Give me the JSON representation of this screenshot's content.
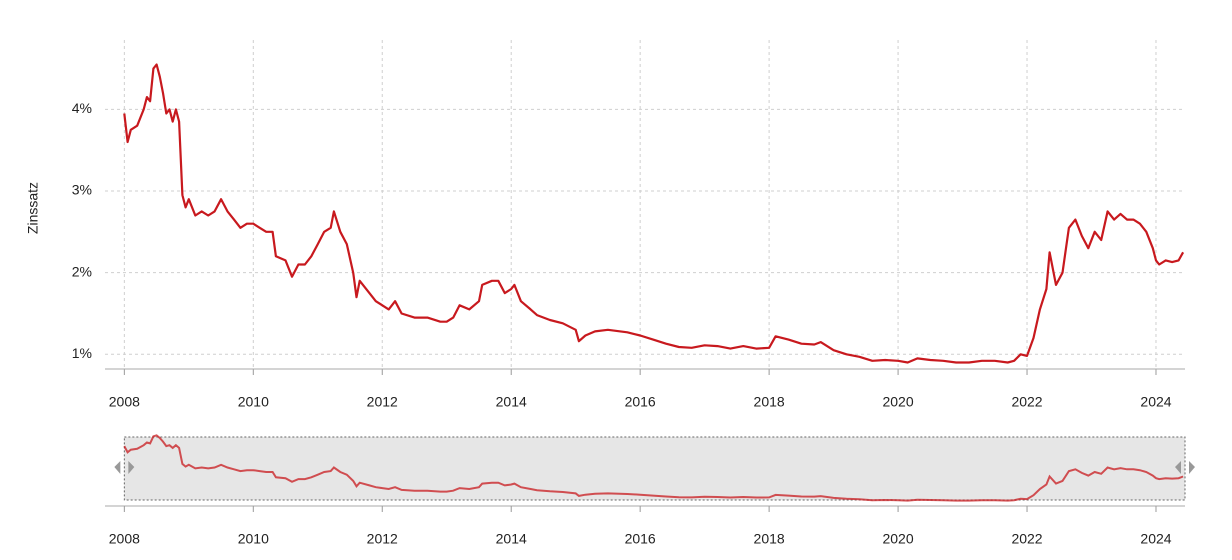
{
  "chart_data": {
    "type": "line",
    "y_label": "Zinssatz",
    "x": [
      2008.0,
      2008.05,
      2008.1,
      2008.2,
      2008.3,
      2008.35,
      2008.4,
      2008.45,
      2008.5,
      2008.55,
      2008.6,
      2008.65,
      2008.7,
      2008.75,
      2008.8,
      2008.85,
      2008.9,
      2008.95,
      2009.0,
      2009.1,
      2009.2,
      2009.3,
      2009.4,
      2009.5,
      2009.6,
      2009.7,
      2009.8,
      2009.9,
      2010.0,
      2010.1,
      2010.2,
      2010.3,
      2010.35,
      2010.5,
      2010.6,
      2010.7,
      2010.8,
      2010.9,
      2011.0,
      2011.1,
      2011.2,
      2011.25,
      2011.35,
      2011.45,
      2011.55,
      2011.6,
      2011.65,
      2011.8,
      2011.9,
      2012.0,
      2012.1,
      2012.2,
      2012.3,
      2012.5,
      2012.7,
      2012.9,
      2013.0,
      2013.1,
      2013.2,
      2013.35,
      2013.5,
      2013.55,
      2013.7,
      2013.8,
      2013.9,
      2014.0,
      2014.05,
      2014.15,
      2014.3,
      2014.4,
      2014.6,
      2014.8,
      2015.0,
      2015.05,
      2015.15,
      2015.3,
      2015.5,
      2015.8,
      2016.0,
      2016.2,
      2016.4,
      2016.6,
      2016.8,
      2017.0,
      2017.2,
      2017.4,
      2017.6,
      2017.8,
      2018.0,
      2018.1,
      2018.3,
      2018.5,
      2018.7,
      2018.8,
      2019.0,
      2019.2,
      2019.4,
      2019.6,
      2019.8,
      2020.0,
      2020.15,
      2020.3,
      2020.5,
      2020.7,
      2020.9,
      2021.1,
      2021.3,
      2021.5,
      2021.7,
      2021.8,
      2021.9,
      2022.0,
      2022.1,
      2022.2,
      2022.3,
      2022.35,
      2022.45,
      2022.55,
      2022.65,
      2022.75,
      2022.85,
      2022.95,
      2023.05,
      2023.15,
      2023.25,
      2023.35,
      2023.45,
      2023.55,
      2023.65,
      2023.75,
      2023.85,
      2023.95,
      2024.0,
      2024.05,
      2024.15,
      2024.25,
      2024.35,
      2024.42
    ],
    "series": [
      {
        "color": "#c8191e",
        "values": [
          3.95,
          3.6,
          3.75,
          3.8,
          4.0,
          4.15,
          4.1,
          4.5,
          4.55,
          4.4,
          4.2,
          3.95,
          4.0,
          3.85,
          4.0,
          3.85,
          2.95,
          2.8,
          2.9,
          2.7,
          2.75,
          2.7,
          2.75,
          2.9,
          2.75,
          2.65,
          2.55,
          2.6,
          2.6,
          2.55,
          2.5,
          2.5,
          2.2,
          2.15,
          1.95,
          2.1,
          2.1,
          2.2,
          2.35,
          2.5,
          2.55,
          2.75,
          2.5,
          2.35,
          2.0,
          1.7,
          1.9,
          1.75,
          1.65,
          1.6,
          1.55,
          1.65,
          1.5,
          1.45,
          1.45,
          1.4,
          1.4,
          1.45,
          1.6,
          1.55,
          1.65,
          1.85,
          1.9,
          1.9,
          1.75,
          1.8,
          1.85,
          1.65,
          1.55,
          1.48,
          1.42,
          1.38,
          1.3,
          1.16,
          1.23,
          1.28,
          1.3,
          1.27,
          1.23,
          1.18,
          1.13,
          1.09,
          1.08,
          1.11,
          1.1,
          1.07,
          1.1,
          1.07,
          1.08,
          1.22,
          1.18,
          1.13,
          1.12,
          1.15,
          1.05,
          1.0,
          0.97,
          0.92,
          0.93,
          0.92,
          0.9,
          0.95,
          0.93,
          0.92,
          0.9,
          0.9,
          0.92,
          0.92,
          0.9,
          0.92,
          1.0,
          0.98,
          1.2,
          1.55,
          1.8,
          2.25,
          1.85,
          2.0,
          2.55,
          2.65,
          2.45,
          2.3,
          2.5,
          2.4,
          2.75,
          2.65,
          2.72,
          2.65,
          2.65,
          2.6,
          2.5,
          2.3,
          2.15,
          2.1,
          2.15,
          2.13,
          2.15,
          2.25
        ]
      }
    ],
    "xlim": [
      2007.7,
      2024.45
    ],
    "xticks": [
      2008,
      2010,
      2012,
      2014,
      2016,
      2018,
      2020,
      2022,
      2024
    ],
    "ylim": [
      0.82,
      4.85
    ],
    "yticks": [
      {
        "value": 1,
        "label": "1%"
      },
      {
        "value": 2,
        "label": "2%"
      },
      {
        "value": 3,
        "label": "3%"
      },
      {
        "value": 4,
        "label": "4%"
      }
    ],
    "grid": true,
    "navigator": true
  }
}
